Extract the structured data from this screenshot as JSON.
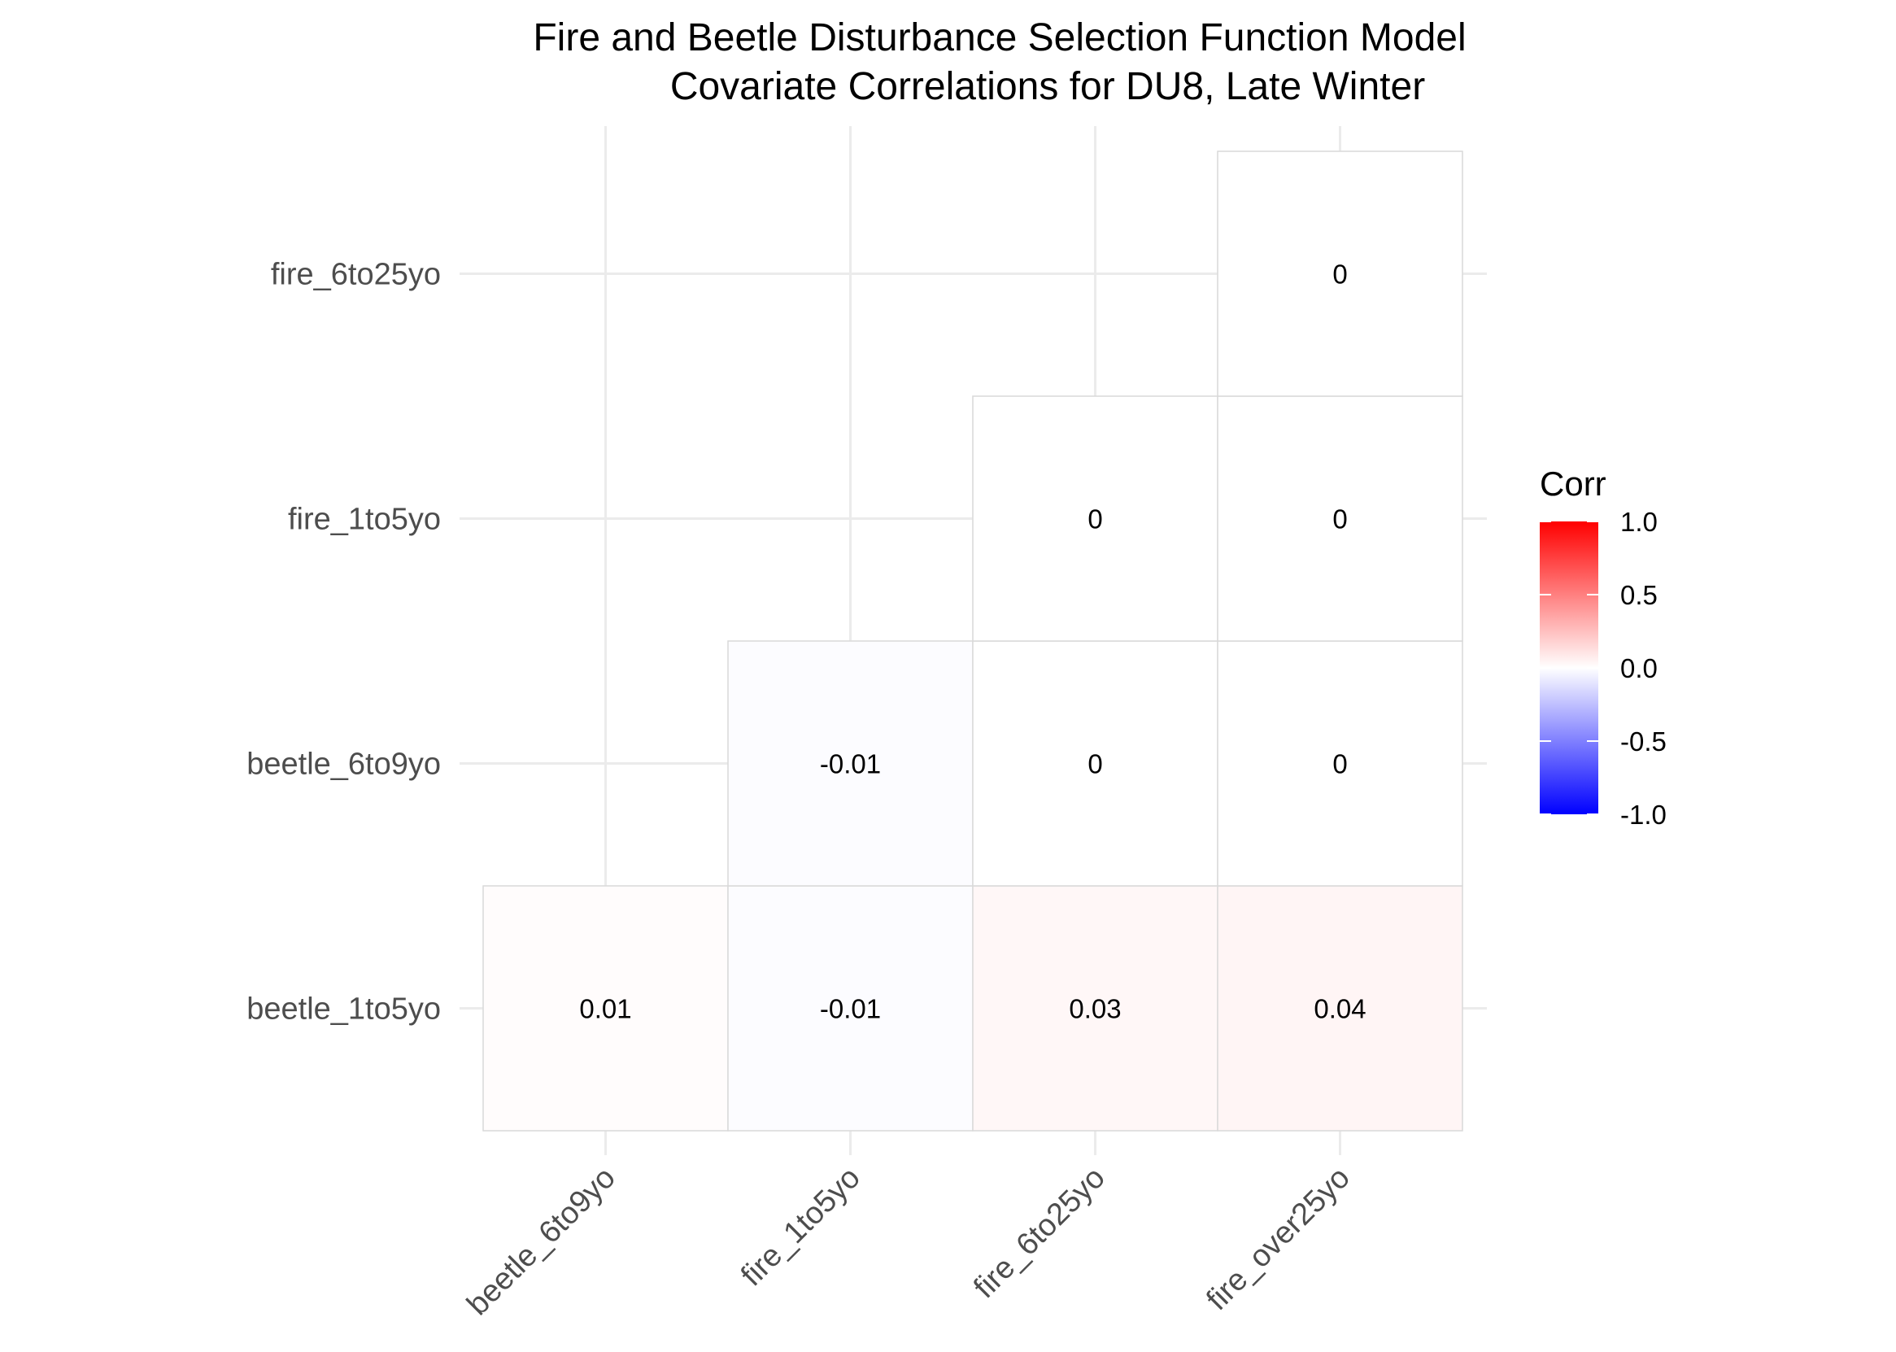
{
  "chart_data": {
    "type": "heatmap",
    "title_lines": [
      "Fire and Beetle Disturbance Selection Function Model",
      "Covariate Correlations for DU8, Late Winter"
    ],
    "x_categories": [
      "beetle_6to9yo",
      "fire_1to5yo",
      "fire_6to25yo",
      "fire_over25yo"
    ],
    "y_categories": [
      "beetle_1to5yo",
      "beetle_6to9yo",
      "fire_1to5yo",
      "fire_6to25yo"
    ],
    "cells": [
      {
        "x": "beetle_6to9yo",
        "y": "beetle_1to5yo",
        "value": 0.01,
        "label": "0.01"
      },
      {
        "x": "fire_1to5yo",
        "y": "beetle_1to5yo",
        "value": -0.01,
        "label": "-0.01"
      },
      {
        "x": "fire_6to25yo",
        "y": "beetle_1to5yo",
        "value": 0.03,
        "label": "0.03"
      },
      {
        "x": "fire_over25yo",
        "y": "beetle_1to5yo",
        "value": 0.04,
        "label": "0.04"
      },
      {
        "x": "fire_1to5yo",
        "y": "beetle_6to9yo",
        "value": -0.01,
        "label": "-0.01"
      },
      {
        "x": "fire_6to25yo",
        "y": "beetle_6to9yo",
        "value": 0,
        "label": "0"
      },
      {
        "x": "fire_over25yo",
        "y": "beetle_6to9yo",
        "value": 0,
        "label": "0"
      },
      {
        "x": "fire_6to25yo",
        "y": "fire_1to5yo",
        "value": 0,
        "label": "0"
      },
      {
        "x": "fire_over25yo",
        "y": "fire_1to5yo",
        "value": 0,
        "label": "0"
      },
      {
        "x": "fire_over25yo",
        "y": "fire_6to25yo",
        "value": 0,
        "label": "0"
      }
    ],
    "legend": {
      "title": "Corr",
      "range": [
        -1,
        1
      ],
      "ticks": [
        1.0,
        0.5,
        0.0,
        -0.5,
        -1.0
      ],
      "tick_labels": [
        "1.0",
        "0.5",
        "0.0",
        "-0.5",
        "-1.0"
      ],
      "colors": {
        "low": "#0000ff",
        "mid": "#ffffff",
        "high": "#ff0000"
      },
      "placement": "right"
    },
    "grid": true,
    "colors": {
      "grid": "#ebebeb",
      "cell_border": "#d9d9d9"
    }
  }
}
